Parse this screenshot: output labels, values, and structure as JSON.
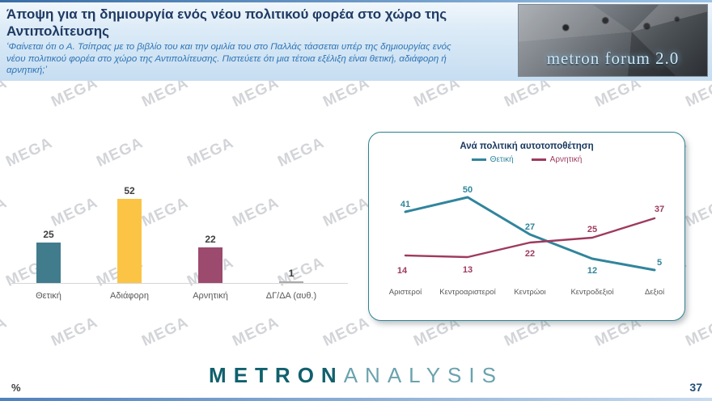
{
  "header": {
    "title": "Άποψη για τη δημιουργία ενός νέου πολιτικού φορέα στο χώρο της Αντιπολίτευσης",
    "question": "‘Φαίνεται ότι ο Α. Τσίπρας με το βιβλίο του και την ομιλία του στο Παλλάς τάσσεται υπέρ της δημιουργίας ενός νέου πολιτικού φορέα στο χώρο της Αντιπολίτευσης. Πιστεύετε ότι μια τέτοια εξέλιξη είναι θετική, αδιάφορη ή αρνητική;’",
    "logo_text": "metron forum 2.0"
  },
  "watermark": "MEGA",
  "chart_data": [
    {
      "type": "bar",
      "title": "",
      "categories": [
        "Θετική",
        "Αδιάφορη",
        "Αρνητική",
        "ΔΓ/ΔΑ (αυθ.)"
      ],
      "values": [
        25,
        52,
        22,
        1
      ],
      "colors": [
        "#417c8d",
        "#fbc445",
        "#9c4a6e",
        "#aaaaaa"
      ],
      "ylim": [
        0,
        60
      ],
      "grid": false,
      "data_labels": true
    },
    {
      "type": "line",
      "title": "Ανά πολιτική αυτοτοποθέτηση",
      "categories": [
        "Αριστεροί",
        "Κεντροαριστεροί",
        "Κεντρώοι",
        "Κεντροδεξιοί",
        "Δεξιοί"
      ],
      "series": [
        {
          "name": "Θετική",
          "color": "#31859c",
          "values": [
            41,
            50,
            27,
            12,
            5
          ]
        },
        {
          "name": "Αρνητική",
          "color": "#9e3a5f",
          "values": [
            14,
            13,
            22,
            25,
            37
          ]
        }
      ],
      "ylim": [
        0,
        60
      ],
      "legend_position": "top",
      "grid": false,
      "data_labels": true
    }
  ],
  "footer": {
    "unit_label": "%",
    "brand_primary": "METRON",
    "brand_secondary": "ANALYSIS",
    "page_number": "37"
  }
}
